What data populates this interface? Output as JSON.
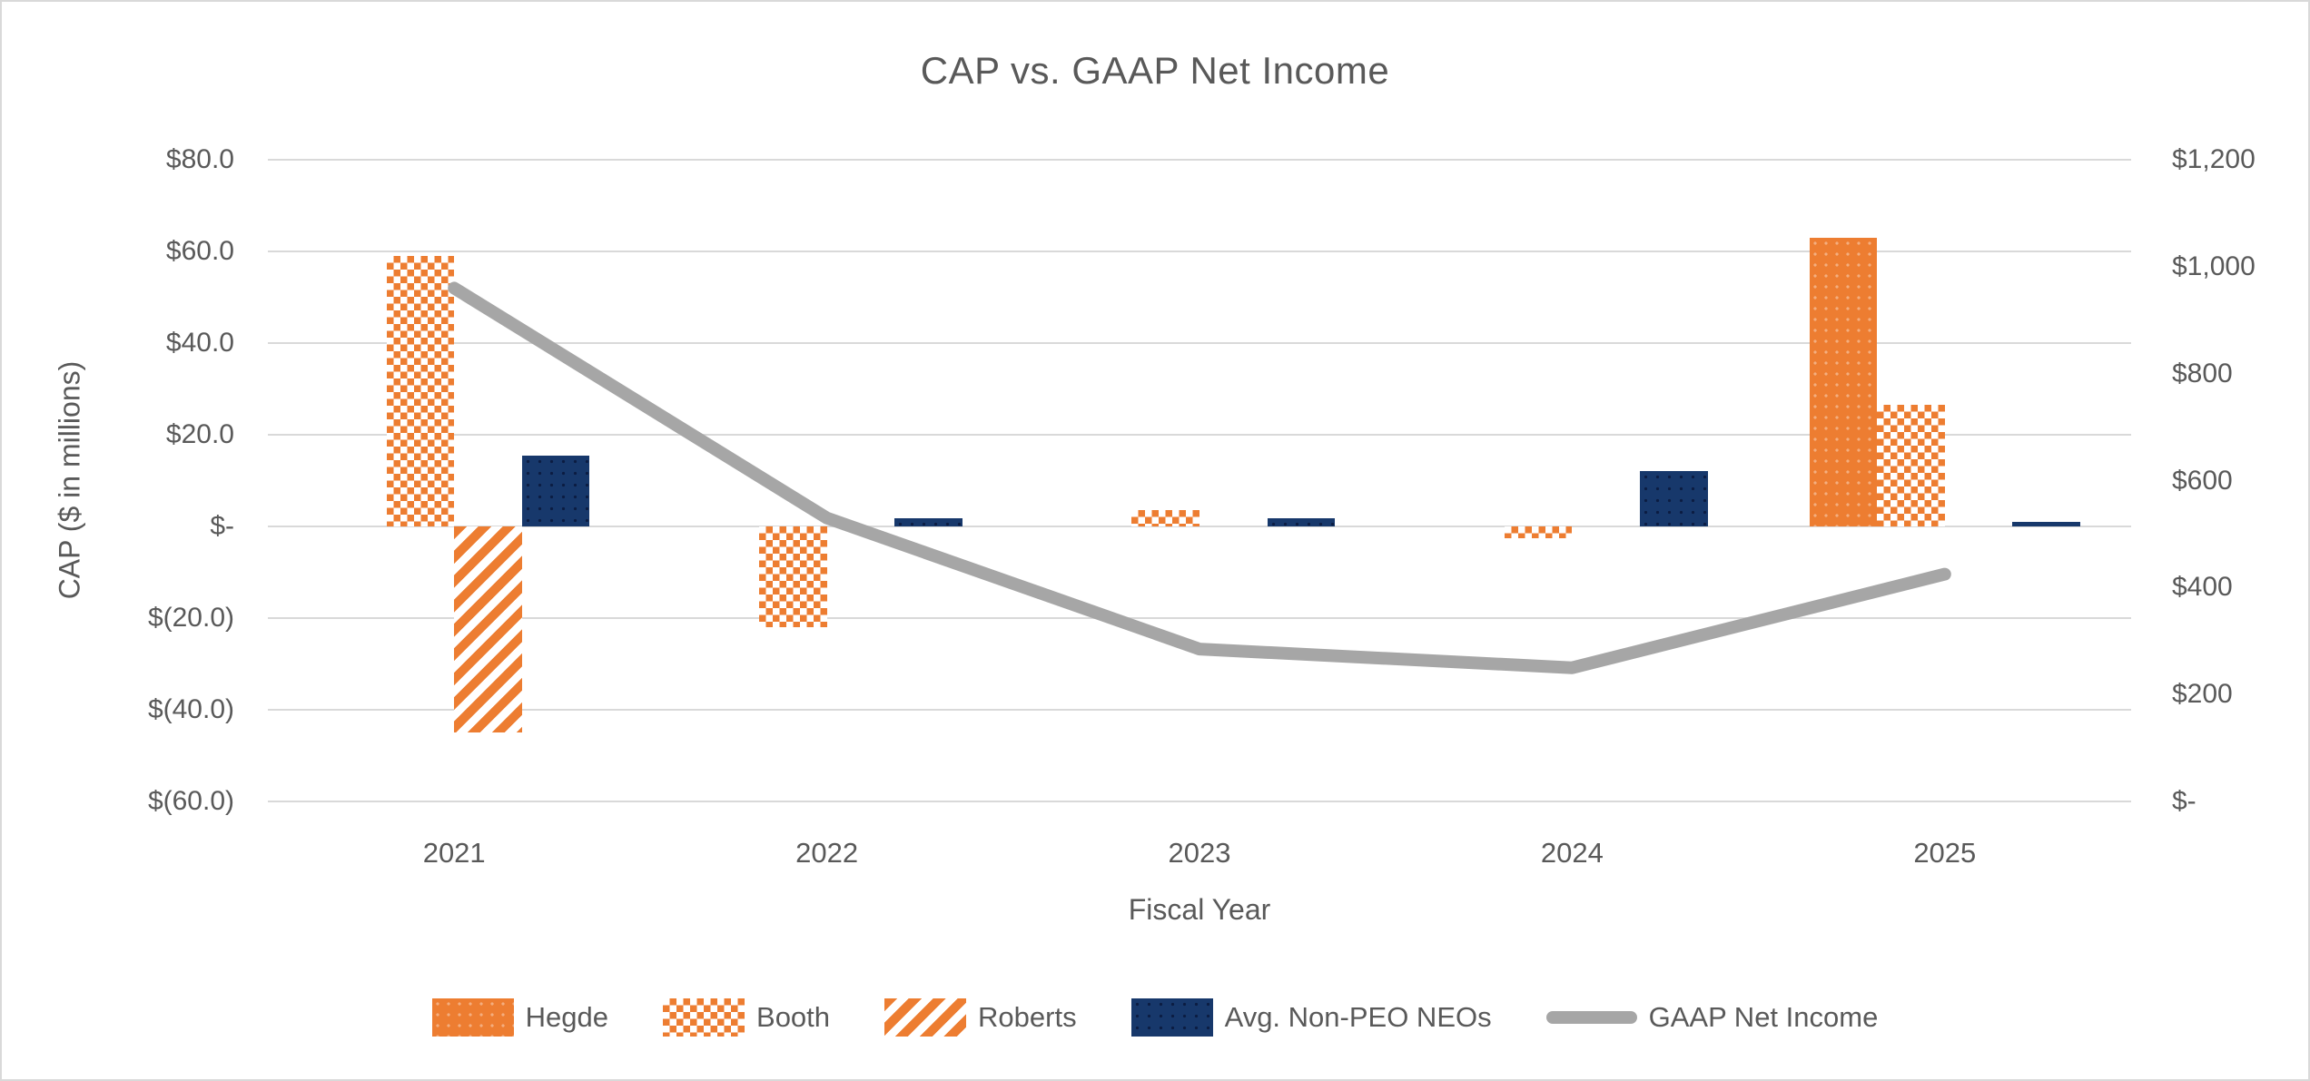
{
  "chart_data": {
    "type": "combo-bar-line",
    "title": "CAP vs. GAAP Net Income",
    "xlabel": "Fiscal Year",
    "ylabel_left": "CAP ($ in millions)",
    "categories": [
      "2021",
      "2022",
      "2023",
      "2024",
      "2025"
    ],
    "grid": true,
    "legend_position": "bottom",
    "left_axis": {
      "min": -60,
      "max": 80,
      "tick_step": 20,
      "tick_values": [
        80,
        60,
        40,
        20,
        0,
        -20,
        -40,
        -60
      ],
      "tick_labels": [
        "$80.0",
        "$60.0",
        "$40.0",
        "$20.0",
        "$-",
        "$(20.0)",
        "$(40.0)",
        "$(60.0)"
      ]
    },
    "right_axis": {
      "min": 0,
      "max": 1200,
      "tick_step": 200,
      "tick_values": [
        1200,
        1000,
        800,
        600,
        400,
        200,
        0
      ],
      "tick_labels": [
        "$1,200",
        "$1,000",
        "$800",
        "$600",
        "$400",
        "$200",
        "$-"
      ]
    },
    "bar_series": [
      {
        "name": "Hegde",
        "key": "hegde",
        "pattern": "solid-orange",
        "color": "#ED7D31",
        "values": [
          null,
          null,
          null,
          null,
          63
        ]
      },
      {
        "name": "Booth",
        "key": "booth",
        "pattern": "checker-orange",
        "color": "#ED7D31",
        "values": [
          59,
          -22,
          3.5,
          -2.5,
          26.5
        ]
      },
      {
        "name": "Roberts",
        "key": "roberts",
        "pattern": "diagonal-orange",
        "color": "#ED7D31",
        "values": [
          -45,
          null,
          null,
          null,
          null
        ]
      },
      {
        "name": "Avg. Non-PEO NEOs",
        "key": "neos",
        "pattern": "solid-navy",
        "color": "#17386B",
        "values": [
          15.5,
          1.7,
          1.7,
          12,
          1
        ]
      }
    ],
    "line_series": {
      "name": "GAAP Net Income",
      "key": "gaap",
      "axis": "right",
      "color": "#A6A6A6",
      "values": [
        960,
        530,
        285,
        250,
        425
      ]
    }
  },
  "colors": {
    "orange": "#ED7D31",
    "navy": "#17386B",
    "line_gray": "#A6A6A6",
    "gridline": "#D9D9D9",
    "text": "#595959",
    "border": "#D9D9D9",
    "background": "#FFFFFF"
  }
}
